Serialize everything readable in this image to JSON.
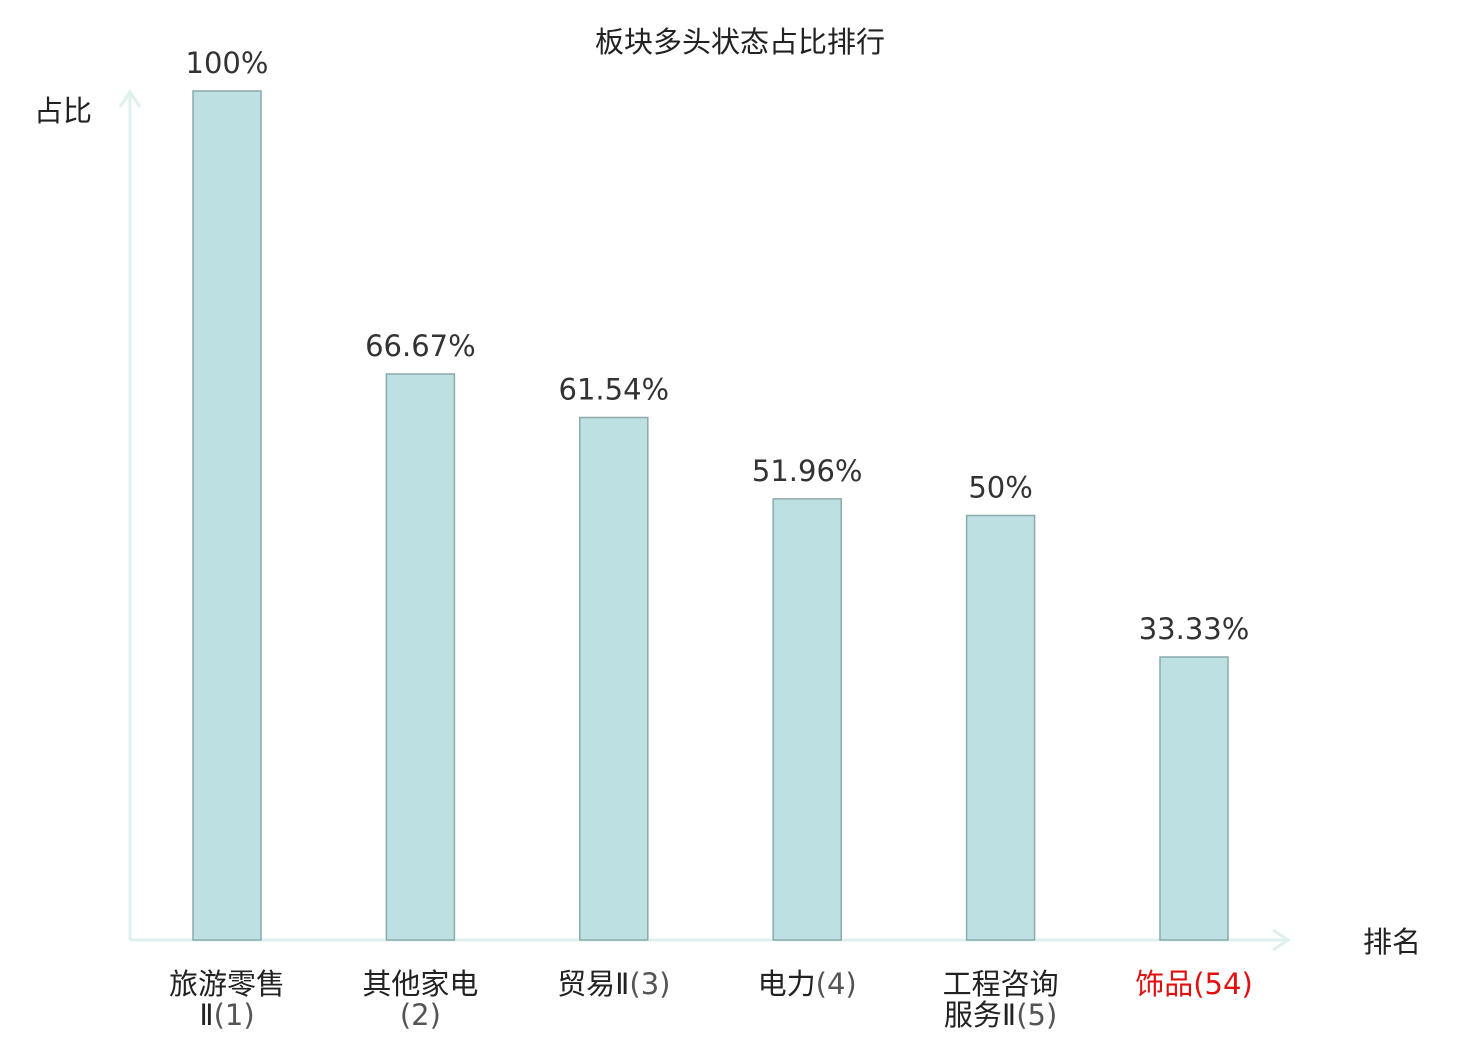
{
  "chart_data": {
    "type": "bar",
    "title": "板块多头状态占比排行",
    "ylabel": "占比",
    "xlabel": "排名",
    "ylim": [
      0,
      100
    ],
    "grid": false,
    "categories": [
      {
        "name_lines": [
          "旅游零售",
          "Ⅱ"
        ],
        "rank": "(1)",
        "highlight": false
      },
      {
        "name_lines": [
          "其他家电",
          ""
        ],
        "rank": "(2)",
        "highlight": false
      },
      {
        "name_lines": [
          "贸易Ⅱ"
        ],
        "rank": "(3)",
        "highlight": false
      },
      {
        "name_lines": [
          "电力"
        ],
        "rank": "(4)",
        "highlight": false
      },
      {
        "name_lines": [
          "工程咨询",
          "服务Ⅱ"
        ],
        "rank": "(5)",
        "highlight": false
      },
      {
        "name_lines": [
          "饰品"
        ],
        "rank": "(54)",
        "highlight": true
      }
    ],
    "values": [
      100,
      66.67,
      61.54,
      51.96,
      50,
      33.33
    ],
    "value_labels": [
      "100%",
      "66.67%",
      "61.54%",
      "51.96%",
      "50%",
      "33.33%"
    ],
    "colors": {
      "bar_fill": "#bde0e3",
      "bar_stroke": "#8aaaab",
      "axis": "#dff1ee",
      "label_text": "#222222",
      "rank_text": "#555555",
      "highlight_text": "#e01010"
    }
  }
}
